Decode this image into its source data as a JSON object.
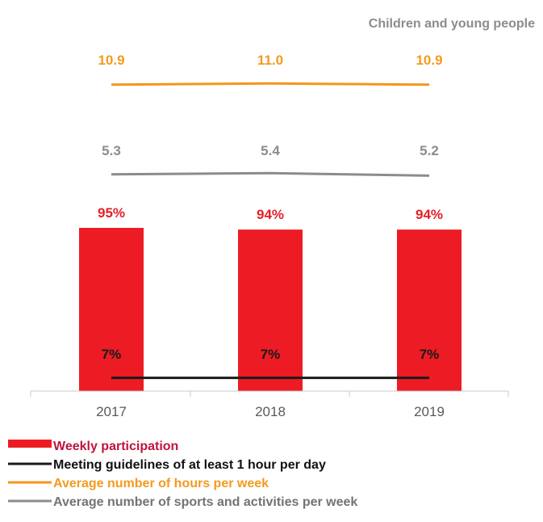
{
  "chart_data": {
    "type": "bar",
    "subtitle": "Children and young people",
    "categories": [
      "2017",
      "2018",
      "2019"
    ],
    "bar_series": {
      "name": "Weekly participation",
      "values": [
        95,
        94,
        94
      ],
      "labels": [
        "95%",
        "94%",
        "94%"
      ],
      "color": "#ed1c24",
      "label_color": "#e41e26"
    },
    "line_series": [
      {
        "name": "Meeting guidelines of at least 1 hour per day",
        "values": [
          7,
          7,
          7
        ],
        "labels": [
          "7%",
          "7%",
          "7%"
        ],
        "color": "#1a1a1a",
        "label_color": "#1a1a1a"
      },
      {
        "name": "Average number of hours per week",
        "values": [
          10.9,
          11.0,
          10.9
        ],
        "labels": [
          "10.9",
          "11.0",
          "10.9"
        ],
        "color": "#f7941d",
        "label_color": "#f39a1e"
      },
      {
        "name": "Average number of sports and activities per week",
        "values": [
          5.3,
          5.4,
          5.2
        ],
        "labels": [
          "5.3",
          "5.4",
          "5.2"
        ],
        "color": "#8c8c8c",
        "label_color": "#8c8c8c"
      }
    ],
    "legend": {
      "position": "bottom-left",
      "items": [
        {
          "label": "Weekly participation",
          "color": "#ed1c24",
          "text_color": "#c0143c",
          "symbol": "bar"
        },
        {
          "label": "Meeting guidelines of at least 1 hour per day",
          "color": "#1a1a1a",
          "text_color": "#111111",
          "symbol": "line"
        },
        {
          "label": "Average number of hours per week",
          "color": "#f7941d",
          "text_color": "#f39a1e",
          "symbol": "line"
        },
        {
          "label": "Average number of sports and activities per week",
          "color": "#8c8c8c",
          "text_color": "#737373",
          "symbol": "line"
        }
      ]
    },
    "gridlines": false
  }
}
